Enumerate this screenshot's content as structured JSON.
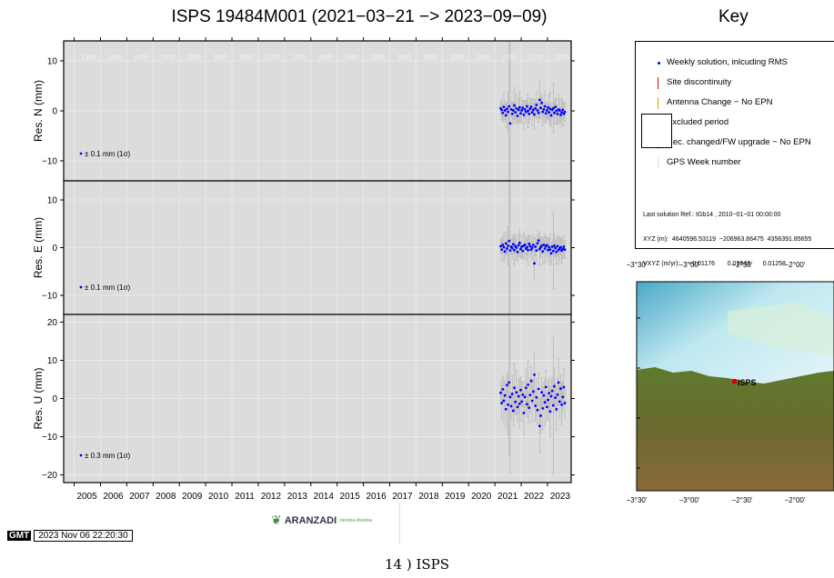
{
  "page": {
    "title": "ISPS 19484M001 (2021−03−21 −> 2023−09−09)",
    "key_title": "Key",
    "timestamp": "2023 Nov 06 22:20:30",
    "gmt_logo": "GMT",
    "logo_name": "ARANZADI",
    "logo_tagline": "zientzia elkartea",
    "caption": "14 ) ISPS"
  },
  "colors": {
    "panel_bg": "#dcdcdc",
    "points": "#0000ff",
    "errorbars": "#b4b4b4",
    "discontinuity": "#ff0000",
    "antenna": "#e0a000",
    "receiver": "#60c060"
  },
  "key": {
    "items": [
      {
        "label": "Weekly solution, inlcuding RMS",
        "symbol": "dot"
      },
      {
        "label": "Site discontinuity",
        "symbol": "red-line"
      },
      {
        "label": "Antenna Change − No EPN",
        "symbol": "orange-line"
      },
      {
        "label": "Excluded period",
        "symbol": "box"
      },
      {
        "label": "Rec. changed/FW upgrade − No EPN",
        "symbol": "green-line"
      },
      {
        "label": "GPS Week number",
        "symbol": "gray-line"
      }
    ],
    "solution_ref": "Last solution Ref.: IGb14 , 2010−01−01 00:00:00",
    "xyz": "XYZ (m):  4640596.53119  −206963.86475  4356391.85655",
    "vxyz": "VXYZ (m/yr):     −0.01176       0.01943       0.01258"
  },
  "map": {
    "lon_labels": [
      "−3°30'",
      "−3°00'",
      "−2°30'",
      "−2°00'"
    ],
    "station_label": "ISPS"
  },
  "chart_data": {
    "type": "scatter",
    "x_unit": "year",
    "xlim": [
      2004.6,
      2023.9
    ],
    "x_tick_labels": [
      "2005",
      "2006",
      "2007",
      "2008",
      "2009",
      "2010",
      "2011",
      "2012",
      "2013",
      "2014",
      "2015",
      "2016",
      "2017",
      "2018",
      "2019",
      "2020",
      "2021",
      "2022",
      "2023"
    ],
    "gps_weeks": [
      "1350",
      "1400",
      "1450",
      "1500",
      "1550",
      "1600",
      "1650",
      "1700",
      "1750",
      "1800",
      "1850",
      "1900",
      "1950",
      "2000",
      "2050",
      "2100",
      "2150",
      "2200",
      "2250"
    ],
    "grid": true,
    "panels": [
      {
        "ylabel": "Res. N (mm)",
        "ylim": [
          -14,
          14
        ],
        "yticks": [
          -10,
          0,
          10
        ],
        "ytick_labels": [
          "−10",
          "0",
          "10"
        ],
        "annotation": "± 0.1 mm (1σ)",
        "x": [
          2021.22,
          2021.26,
          2021.3,
          2021.34,
          2021.38,
          2021.42,
          2021.46,
          2021.5,
          2021.54,
          2021.58,
          2021.62,
          2021.66,
          2021.7,
          2021.74,
          2021.78,
          2021.82,
          2021.86,
          2021.9,
          2021.94,
          2021.98,
          2022.02,
          2022.06,
          2022.1,
          2022.14,
          2022.18,
          2022.22,
          2022.26,
          2022.3,
          2022.34,
          2022.38,
          2022.42,
          2022.46,
          2022.5,
          2022.54,
          2022.58,
          2022.62,
          2022.66,
          2022.7,
          2022.74,
          2022.78,
          2022.82,
          2022.86,
          2022.9,
          2022.94,
          2022.98,
          2023.02,
          2023.06,
          2023.1,
          2023.14,
          2023.18,
          2023.22,
          2023.26,
          2023.3,
          2023.34,
          2023.38,
          2023.42,
          2023.46,
          2023.5,
          2023.54,
          2023.58,
          2023.62,
          2023.66
        ],
        "y": [
          0.5,
          0.2,
          -0.4,
          0.8,
          0.1,
          -0.9,
          0.4,
          -0.2,
          0.9,
          -2.5,
          0.3,
          -0.6,
          0.1,
          1.1,
          -0.3,
          0.5,
          -1.0,
          0.2,
          0.7,
          -0.5,
          0.1,
          0.6,
          -0.8,
          0.3,
          -0.2,
          0.9,
          0.0,
          -0.6,
          0.4,
          0.8,
          -0.3,
          0.2,
          -0.7,
          0.5,
          1.2,
          0.1,
          -0.4,
          2.2,
          0.6,
          1.6,
          -0.2,
          0.3,
          0.9,
          -0.5,
          0.1,
          0.7,
          -0.3,
          0.4,
          -0.9,
          0.2,
          0.5,
          -0.4,
          0.8,
          0.0,
          -0.6,
          0.3,
          0.1,
          -0.8,
          -0.3,
          0.2,
          -0.6,
          -0.2
        ],
        "rms": [
          1.2,
          2.0,
          1.5,
          3.0,
          1.8,
          2.5,
          1.2,
          4.0,
          20.0,
          22.0,
          1.5,
          2.2,
          1.8,
          3.5,
          1.4,
          2.8,
          1.6,
          2.4,
          3.2,
          1.5,
          2.6,
          1.3,
          2.9,
          1.7,
          2.2,
          1.5,
          3.4,
          1.9,
          2.1,
          1.6,
          2.7,
          1.4,
          3.0,
          1.8,
          2.5,
          1.6,
          1.9,
          3.6,
          2.2,
          1.7,
          2.8,
          1.5,
          3.1,
          2.0,
          1.6,
          2.4,
          1.8,
          3.3,
          2.1,
          1.5,
          5.0,
          2.3,
          1.7,
          2.6,
          1.9,
          3.0,
          2.2,
          1.6,
          2.8,
          1.9,
          2.4,
          1.8
        ]
      },
      {
        "ylabel": "Res. E (mm)",
        "ylim": [
          -14,
          14
        ],
        "yticks": [
          -10,
          0,
          10
        ],
        "ytick_labels": [
          "−10",
          "0",
          "10"
        ],
        "annotation": "± 0.1 mm (1σ)",
        "x": [
          2021.22,
          2021.26,
          2021.3,
          2021.34,
          2021.38,
          2021.42,
          2021.46,
          2021.5,
          2021.54,
          2021.58,
          2021.62,
          2021.66,
          2021.7,
          2021.74,
          2021.78,
          2021.82,
          2021.86,
          2021.9,
          2021.94,
          2021.98,
          2022.02,
          2022.06,
          2022.1,
          2022.14,
          2022.18,
          2022.22,
          2022.26,
          2022.3,
          2022.34,
          2022.38,
          2022.42,
          2022.46,
          2022.5,
          2022.54,
          2022.58,
          2022.62,
          2022.66,
          2022.7,
          2022.74,
          2022.78,
          2022.82,
          2022.86,
          2022.9,
          2022.94,
          2022.98,
          2023.02,
          2023.06,
          2023.1,
          2023.14,
          2023.18,
          2023.22,
          2023.26,
          2023.3,
          2023.34,
          2023.38,
          2023.42,
          2023.46,
          2023.5,
          2023.54,
          2023.58,
          2023.62,
          2023.66
        ],
        "y": [
          0.3,
          -0.4,
          0.6,
          0.1,
          -0.8,
          0.9,
          -0.2,
          0.4,
          1.4,
          -0.6,
          0.2,
          -0.1,
          0.7,
          -0.5,
          0.3,
          0.0,
          -0.9,
          0.5,
          1.0,
          -0.3,
          0.2,
          -0.7,
          0.4,
          0.6,
          -0.2,
          0.1,
          -0.5,
          0.8,
          0.3,
          -0.4,
          0.0,
          0.6,
          -3.3,
          0.2,
          -0.6,
          0.9,
          1.5,
          -0.3,
          0.1,
          0.4,
          -0.8,
          0.6,
          -0.2,
          0.3,
          0.5,
          -0.5,
          0.1,
          -0.4,
          -1.2,
          0.2,
          -0.7,
          0.4,
          -0.1,
          -0.9,
          0.3,
          -0.5,
          -0.2,
          0.1,
          -0.6,
          -0.3,
          0.2,
          -0.4
        ],
        "rms": [
          1.5,
          2.2,
          1.8,
          3.0,
          1.6,
          2.4,
          1.4,
          4.0,
          20.0,
          21.0,
          1.7,
          2.3,
          1.9,
          3.2,
          1.5,
          2.7,
          1.8,
          2.2,
          3.0,
          1.6,
          2.5,
          1.4,
          2.8,
          1.9,
          2.3,
          1.6,
          3.1,
          1.8,
          2.0,
          1.7,
          2.6,
          1.5,
          3.2,
          1.9,
          2.4,
          1.7,
          2.0,
          3.4,
          2.1,
          1.8,
          2.7,
          1.6,
          3.0,
          2.1,
          1.7,
          2.5,
          1.9,
          3.2,
          2.2,
          1.6,
          8.0,
          2.4,
          1.8,
          2.5,
          2.0,
          2.9,
          2.3,
          1.7,
          2.7,
          2.0,
          2.3,
          1.9
        ]
      },
      {
        "ylabel": "Res. U (mm)",
        "ylim": [
          -22,
          22
        ],
        "yticks": [
          -20,
          -10,
          0,
          10,
          20
        ],
        "ytick_labels": [
          "−20",
          "−10",
          "0",
          "10",
          "20"
        ],
        "annotation": "± 0.3 mm (1σ)",
        "x": [
          2021.22,
          2021.26,
          2021.3,
          2021.34,
          2021.38,
          2021.42,
          2021.46,
          2021.5,
          2021.54,
          2021.58,
          2021.62,
          2021.66,
          2021.7,
          2021.74,
          2021.78,
          2021.82,
          2021.86,
          2021.9,
          2021.94,
          2021.98,
          2022.02,
          2022.06,
          2022.1,
          2022.14,
          2022.18,
          2022.22,
          2022.26,
          2022.3,
          2022.34,
          2022.38,
          2022.42,
          2022.46,
          2022.5,
          2022.54,
          2022.58,
          2022.62,
          2022.66,
          2022.7,
          2022.74,
          2022.78,
          2022.82,
          2022.86,
          2022.9,
          2022.94,
          2022.98,
          2023.02,
          2023.06,
          2023.1,
          2023.14,
          2023.18,
          2023.22,
          2023.26,
          2023.3,
          2023.34,
          2023.38,
          2023.42,
          2023.46,
          2023.5,
          2023.54,
          2023.58,
          2023.62,
          2023.66
        ],
        "y": [
          1.5,
          -1.2,
          2.4,
          -0.6,
          0.8,
          -2.8,
          3.5,
          -1.6,
          4.2,
          0.4,
          -2.0,
          1.2,
          -3.2,
          2.8,
          -0.9,
          1.6,
          -2.2,
          0.6,
          -1.4,
          2.2,
          -0.8,
          1.0,
          -3.8,
          0.4,
          2.8,
          -1.5,
          3.6,
          -2.4,
          0.9,
          4.6,
          -0.6,
          1.8,
          6.2,
          -1.9,
          0.3,
          -3.0,
          2.5,
          -7.2,
          -4.5,
          1.6,
          -2.6,
          0.8,
          -1.0,
          3.0,
          -2.2,
          -0.4,
          1.4,
          -3.4,
          0.6,
          2.0,
          -1.8,
          3.2,
          0.2,
          -2.8,
          1.0,
          4.2,
          -0.8,
          2.6,
          -1.6,
          0.4,
          3.0,
          -1.2
        ],
        "rms": [
          3.0,
          4.5,
          3.5,
          6.0,
          3.8,
          5.0,
          3.2,
          8.0,
          19.0,
          20.0,
          3.5,
          4.8,
          4.0,
          6.5,
          3.4,
          5.6,
          3.8,
          4.6,
          6.2,
          3.5,
          5.2,
          3.2,
          5.8,
          4.0,
          4.8,
          3.4,
          6.4,
          4.0,
          4.4,
          3.6,
          5.5,
          3.3,
          6.0,
          4.0,
          5.0,
          3.6,
          4.2,
          7.0,
          4.6,
          3.8,
          5.6,
          3.4,
          6.2,
          4.4,
          3.6,
          5.0,
          4.0,
          6.6,
          4.4,
          3.4,
          18.0,
          4.8,
          3.8,
          5.4,
          4.2,
          6.0,
          4.6,
          3.6,
          5.6,
          4.2,
          4.8,
          3.9
        ]
      }
    ]
  }
}
